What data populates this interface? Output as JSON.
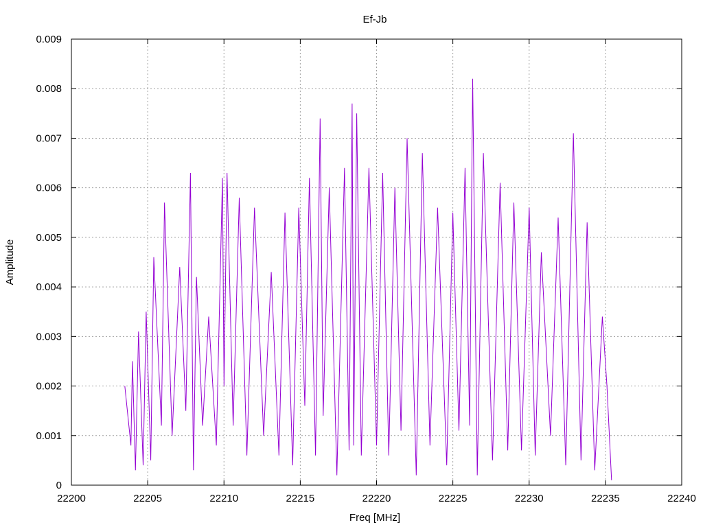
{
  "chart_data": {
    "type": "line",
    "title": "Ef-Jb",
    "xlabel": "Freq [MHz]",
    "ylabel": "Amplitude",
    "xlim": [
      22200,
      22240
    ],
    "ylim": [
      0,
      0.009
    ],
    "x_ticks": [
      "22200",
      "22205",
      "22210",
      "22215",
      "22220",
      "22225",
      "22230",
      "22235",
      "22240"
    ],
    "y_ticks": [
      "0",
      "0.001",
      "0.002",
      "0.003",
      "0.004",
      "0.005",
      "0.006",
      "0.007",
      "0.008",
      "0.009"
    ],
    "grid": true,
    "series": [
      {
        "color": "#9400d3",
        "x_start": 22203.5,
        "x_end": 22235.4,
        "x": [
          22203.5,
          22203.9,
          22204.0,
          22204.2,
          22204.4,
          22204.7,
          22204.9,
          22205.2,
          22205.4,
          22205.9,
          22206.1,
          22206.6,
          22207.1,
          22207.5,
          22207.8,
          22208.0,
          22208.2,
          22208.6,
          22209.0,
          22209.5,
          22209.9,
          22210.0,
          22210.2,
          22210.6,
          22211.0,
          22211.5,
          22212.0,
          22212.6,
          22213.1,
          22213.6,
          22214.0,
          22214.5,
          22214.9,
          22215.3,
          22215.6,
          22216.0,
          22216.3,
          22216.5,
          22216.9,
          22217.4,
          22217.9,
          22218.2,
          22218.4,
          22218.5,
          22218.7,
          22219.0,
          22219.5,
          22220.0,
          22220.4,
          22220.8,
          22221.2,
          22221.6,
          22222.0,
          22222.6,
          22223.0,
          22223.5,
          22224.0,
          22224.6,
          22225.0,
          22225.4,
          22225.8,
          22226.1,
          22226.3,
          22226.6,
          22227.0,
          22227.6,
          22228.1,
          22228.6,
          22229.0,
          22229.5,
          22230.0,
          22230.4,
          22230.8,
          22231.4,
          22231.9,
          22232.4,
          22232.9,
          22233.4,
          22233.8,
          22234.3,
          22234.8,
          22235.1,
          22235.4
        ],
        "y": [
          0.002,
          0.0008,
          0.0025,
          0.0003,
          0.0031,
          0.0004,
          0.0035,
          0.0005,
          0.0046,
          0.0012,
          0.0057,
          0.001,
          0.0044,
          0.0015,
          0.0063,
          0.0003,
          0.0042,
          0.0012,
          0.0034,
          0.0008,
          0.0062,
          0.002,
          0.0063,
          0.0012,
          0.0058,
          0.0006,
          0.0056,
          0.001,
          0.0043,
          0.0006,
          0.0055,
          0.0004,
          0.0056,
          0.0016,
          0.0062,
          0.0006,
          0.0074,
          0.0014,
          0.006,
          0.0002,
          0.0064,
          0.0007,
          0.0077,
          0.0008,
          0.0075,
          0.0006,
          0.0064,
          0.0008,
          0.0063,
          0.0006,
          0.006,
          0.0011,
          0.007,
          0.0002,
          0.0067,
          0.0008,
          0.0056,
          0.0004,
          0.0055,
          0.0011,
          0.0064,
          0.0012,
          0.0082,
          0.0002,
          0.0067,
          0.0005,
          0.0061,
          0.0007,
          0.0057,
          0.0007,
          0.0056,
          0.0006,
          0.0047,
          0.001,
          0.0054,
          0.0004,
          0.0071,
          0.0005,
          0.0053,
          0.0003,
          0.0034,
          0.002,
          0.0001
        ]
      }
    ]
  }
}
